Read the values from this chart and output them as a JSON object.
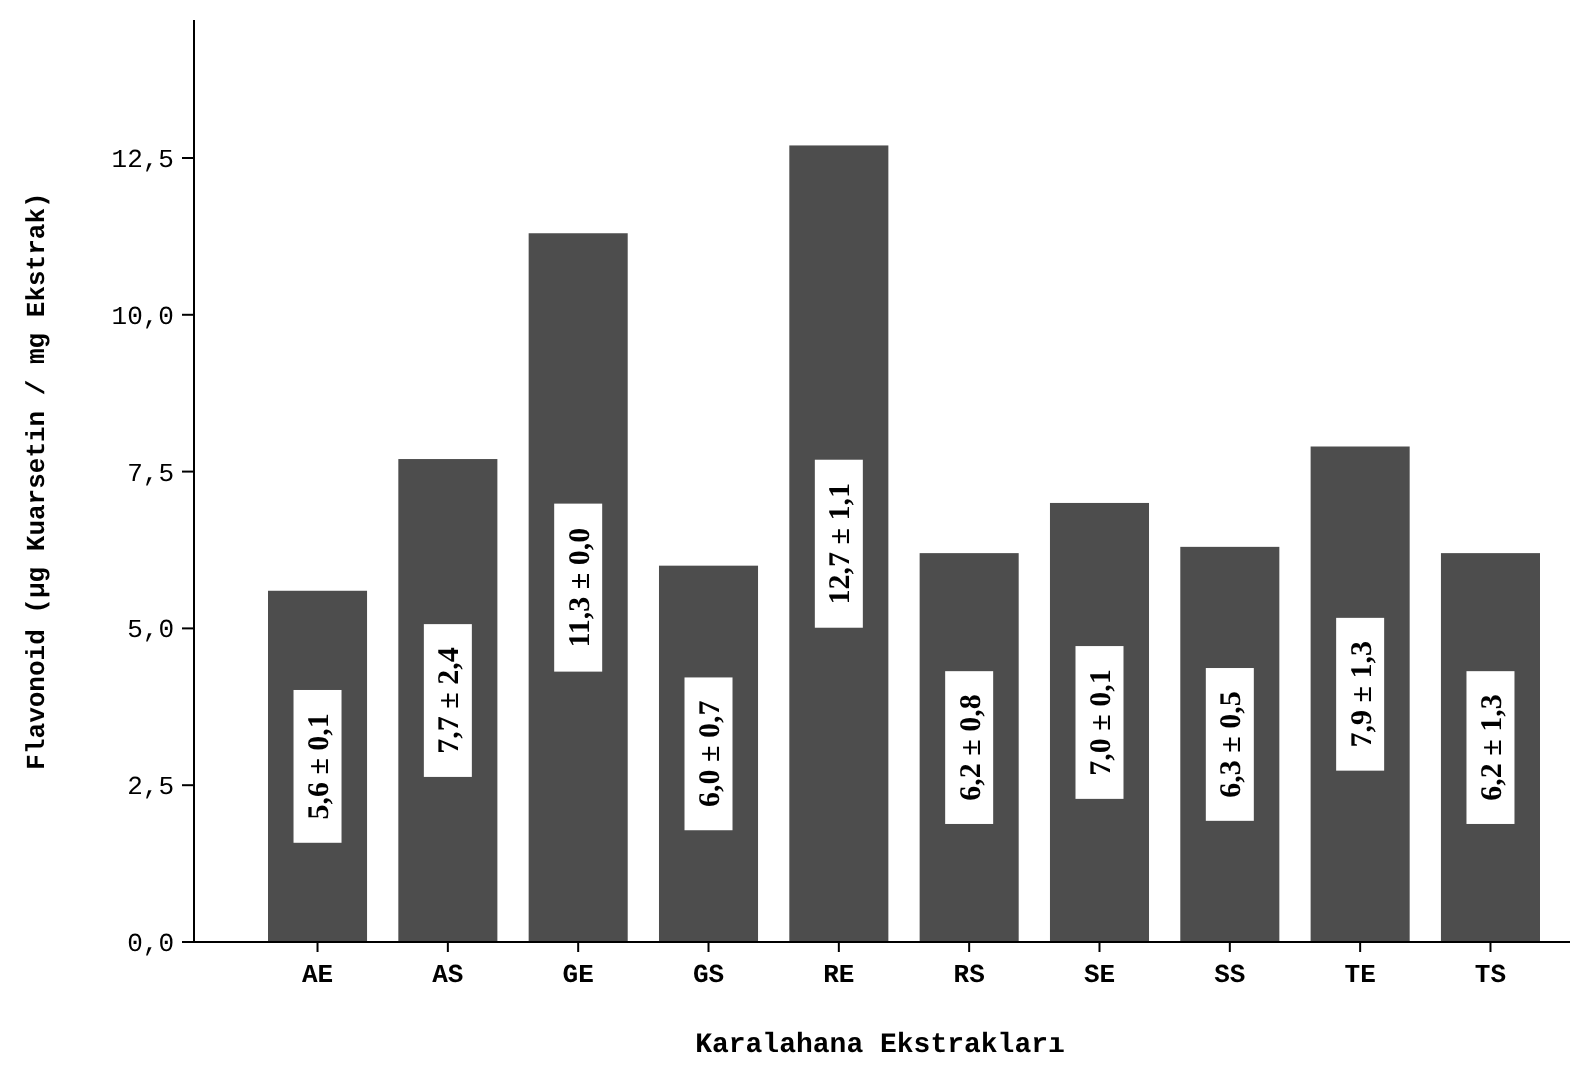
{
  "chart_data": {
    "type": "bar",
    "xlabel": "Karalahana Ekstrakları",
    "ylabel": "Flavonoid (μg Kuarsetin / mg Ekstrak)",
    "categories": [
      "AE",
      "AS",
      "GE",
      "GS",
      "RE",
      "RS",
      "SE",
      "SS",
      "TE",
      "TS"
    ],
    "values": [
      5.6,
      7.7,
      11.3,
      6.0,
      12.7,
      6.2,
      7.0,
      6.3,
      7.9,
      6.2
    ],
    "value_labels": [
      "5,6 ± 0,1",
      "7,7 ± 2,4",
      "11,3 ± 0,0",
      "6,0 ± 0,7",
      "12,7 ± 1,1",
      "6,2 ± 0,8",
      "7,0 ± 0,1",
      "6,3 ± 0,5",
      "7,9 ± 1,3",
      "6,2 ± 1,3"
    ],
    "color": "#4d4d4d",
    "ylim": [
      0,
      14.7
    ],
    "yticks": [
      {
        "value": 0,
        "label": "0,0"
      },
      {
        "value": 2.5,
        "label": "2,5"
      },
      {
        "value": 5,
        "label": "5,0"
      },
      {
        "value": 7.5,
        "label": "7,5"
      },
      {
        "value": 10,
        "label": "10,0"
      },
      {
        "value": 12.5,
        "label": "12,5"
      }
    ],
    "grid": false
  }
}
